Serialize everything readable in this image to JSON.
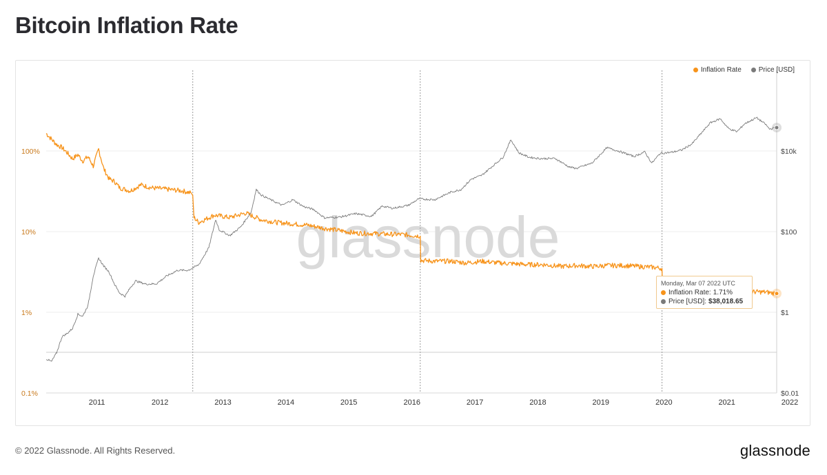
{
  "page": {
    "title": "Bitcoin Inflation Rate",
    "copyright": "© 2022 Glassnode. All Rights Reserved.",
    "brand": "glassnode",
    "watermark": "glassnode"
  },
  "legend": {
    "inflation_label": "Inflation Rate",
    "price_label": "Price [USD]"
  },
  "tooltip": {
    "date": "Monday, Mar 07 2022 UTC",
    "inflation_label": "Inflation Rate:",
    "inflation_value": "1.71%",
    "price_label": "Price [USD]:",
    "price_value": "$38,018.65"
  },
  "colors": {
    "inflation": "#f7931a",
    "price": "#7a7a7a",
    "left_axis_text": "#c8781a",
    "grid": "#eeeeee"
  },
  "chart_data": {
    "type": "line",
    "title": "Bitcoin Inflation Rate",
    "x_type": "date",
    "x_ticks": [
      "2011",
      "2012",
      "2013",
      "2014",
      "2015",
      "2016",
      "2017",
      "2018",
      "2019",
      "2020",
      "2021",
      "2022"
    ],
    "x_range": [
      "2010-08-01",
      "2022-03-07"
    ],
    "y_left": {
      "scale": "log",
      "range": [
        0.1,
        1000
      ],
      "ticks": [
        {
          "value": 0.1,
          "label": "0.1%"
        },
        {
          "value": 1,
          "label": "1%"
        },
        {
          "value": 10,
          "label": "10%"
        },
        {
          "value": 100,
          "label": "100%"
        }
      ]
    },
    "y_right": {
      "scale": "log",
      "range": [
        0.01,
        1000000
      ],
      "ticks": [
        {
          "value": 0.01,
          "label": "$0.01"
        },
        {
          "value": 1,
          "label": "$1"
        },
        {
          "value": 100,
          "label": "$100"
        },
        {
          "value": 10000,
          "label": "$10k"
        }
      ]
    },
    "halvings": [
      "2012-11-28",
      "2016-07-09",
      "2020-05-11"
    ],
    "series": [
      {
        "name": "Inflation Rate",
        "axis": "left",
        "unit": "%",
        "points": [
          [
            "2010-08-01",
            165
          ],
          [
            "2010-09-01",
            140
          ],
          [
            "2010-10-01",
            120
          ],
          [
            "2010-11-01",
            110
          ],
          [
            "2010-12-01",
            95
          ],
          [
            "2011-01-01",
            80
          ],
          [
            "2011-02-01",
            90
          ],
          [
            "2011-03-01",
            75
          ],
          [
            "2011-04-01",
            85
          ],
          [
            "2011-05-01",
            65
          ],
          [
            "2011-06-01",
            105
          ],
          [
            "2011-07-01",
            60
          ],
          [
            "2011-08-01",
            45
          ],
          [
            "2011-09-01",
            42
          ],
          [
            "2011-10-01",
            35
          ],
          [
            "2011-12-01",
            32
          ],
          [
            "2012-02-01",
            38
          ],
          [
            "2012-04-01",
            35
          ],
          [
            "2012-06-01",
            34
          ],
          [
            "2012-08-01",
            33
          ],
          [
            "2012-10-01",
            32
          ],
          [
            "2012-11-20",
            30
          ],
          [
            "2012-11-28",
            28
          ],
          [
            "2012-12-05",
            15
          ],
          [
            "2013-01-01",
            13
          ],
          [
            "2013-04-01",
            16
          ],
          [
            "2013-07-01",
            15
          ],
          [
            "2013-10-01",
            17
          ],
          [
            "2014-01-01",
            14
          ],
          [
            "2014-04-01",
            13
          ],
          [
            "2014-07-01",
            12.5
          ],
          [
            "2014-10-01",
            12
          ],
          [
            "2015-01-01",
            11
          ],
          [
            "2015-04-01",
            10.3
          ],
          [
            "2015-07-01",
            9.6
          ],
          [
            "2015-10-01",
            9.5
          ],
          [
            "2016-01-01",
            9.3
          ],
          [
            "2016-04-01",
            9.2
          ],
          [
            "2016-07-09",
            8.8
          ],
          [
            "2016-07-12",
            4.4
          ],
          [
            "2016-10-01",
            4.3
          ],
          [
            "2017-01-01",
            4.3
          ],
          [
            "2017-04-01",
            4.1
          ],
          [
            "2017-07-01",
            4.3
          ],
          [
            "2017-10-01",
            4.1
          ],
          [
            "2018-01-01",
            4.0
          ],
          [
            "2018-04-01",
            3.9
          ],
          [
            "2018-07-01",
            3.9
          ],
          [
            "2018-10-01",
            3.7
          ],
          [
            "2019-01-01",
            3.8
          ],
          [
            "2019-04-01",
            3.7
          ],
          [
            "2019-07-01",
            3.8
          ],
          [
            "2019-10-01",
            3.8
          ],
          [
            "2020-01-01",
            3.7
          ],
          [
            "2020-04-01",
            3.6
          ],
          [
            "2020-05-11",
            3.5
          ],
          [
            "2020-05-15",
            1.5
          ],
          [
            "2020-07-01",
            1.8
          ],
          [
            "2020-10-01",
            1.75
          ],
          [
            "2021-01-01",
            1.8
          ],
          [
            "2021-04-01",
            1.75
          ],
          [
            "2021-06-01",
            1.3
          ],
          [
            "2021-07-01",
            1.85
          ],
          [
            "2021-10-01",
            1.8
          ],
          [
            "2022-01-01",
            1.78
          ],
          [
            "2022-03-07",
            1.71
          ]
        ]
      },
      {
        "name": "Price [USD]",
        "axis": "right",
        "unit": "USD",
        "points": [
          [
            "2010-08-01",
            0.07
          ],
          [
            "2010-09-01",
            0.06
          ],
          [
            "2010-10-01",
            0.1
          ],
          [
            "2010-11-01",
            0.25
          ],
          [
            "2010-12-01",
            0.3
          ],
          [
            "2011-01-01",
            0.4
          ],
          [
            "2011-02-01",
            0.9
          ],
          [
            "2011-03-01",
            0.8
          ],
          [
            "2011-04-01",
            1.5
          ],
          [
            "2011-05-01",
            8
          ],
          [
            "2011-06-01",
            22
          ],
          [
            "2011-07-01",
            14
          ],
          [
            "2011-08-01",
            10
          ],
          [
            "2011-09-01",
            5
          ],
          [
            "2011-10-01",
            3
          ],
          [
            "2011-11-01",
            2.5
          ],
          [
            "2011-12-01",
            4
          ],
          [
            "2012-01-01",
            6
          ],
          [
            "2012-03-01",
            5
          ],
          [
            "2012-05-01",
            5.1
          ],
          [
            "2012-07-01",
            8
          ],
          [
            "2012-09-01",
            11
          ],
          [
            "2012-11-01",
            11
          ],
          [
            "2013-01-01",
            15
          ],
          [
            "2013-03-01",
            40
          ],
          [
            "2013-04-10",
            200
          ],
          [
            "2013-05-01",
            110
          ],
          [
            "2013-07-01",
            80
          ],
          [
            "2013-09-01",
            130
          ],
          [
            "2013-11-01",
            300
          ],
          [
            "2013-12-01",
            1100
          ],
          [
            "2014-01-01",
            800
          ],
          [
            "2014-03-01",
            600
          ],
          [
            "2014-05-01",
            450
          ],
          [
            "2014-07-01",
            620
          ],
          [
            "2014-09-01",
            420
          ],
          [
            "2014-11-01",
            350
          ],
          [
            "2015-01-01",
            220
          ],
          [
            "2015-04-01",
            230
          ],
          [
            "2015-07-01",
            280
          ],
          [
            "2015-10-01",
            240
          ],
          [
            "2015-12-01",
            430
          ],
          [
            "2016-02-01",
            380
          ],
          [
            "2016-05-01",
            450
          ],
          [
            "2016-07-01",
            650
          ],
          [
            "2016-10-01",
            620
          ],
          [
            "2017-01-01",
            950
          ],
          [
            "2017-03-01",
            1100
          ],
          [
            "2017-05-01",
            2000
          ],
          [
            "2017-07-01",
            2500
          ],
          [
            "2017-09-01",
            4200
          ],
          [
            "2017-11-01",
            7000
          ],
          [
            "2017-12-17",
            19000
          ],
          [
            "2018-02-01",
            9000
          ],
          [
            "2018-04-01",
            7000
          ],
          [
            "2018-06-01",
            6500
          ],
          [
            "2018-09-01",
            6500
          ],
          [
            "2018-11-20",
            4000
          ],
          [
            "2019-01-01",
            3700
          ],
          [
            "2019-04-01",
            5000
          ],
          [
            "2019-06-26",
            12000
          ],
          [
            "2019-09-01",
            10000
          ],
          [
            "2019-12-01",
            7300
          ],
          [
            "2020-02-01",
            9500
          ],
          [
            "2020-03-13",
            5000
          ],
          [
            "2020-05-01",
            8800
          ],
          [
            "2020-07-01",
            9200
          ],
          [
            "2020-09-01",
            10500
          ],
          [
            "2020-11-01",
            15000
          ],
          [
            "2021-01-01",
            30000
          ],
          [
            "2021-02-15",
            50000
          ],
          [
            "2021-04-14",
            63000
          ],
          [
            "2021-06-01",
            36000
          ],
          [
            "2021-07-20",
            30000
          ],
          [
            "2021-09-01",
            47000
          ],
          [
            "2021-11-10",
            67000
          ],
          [
            "2022-01-01",
            46000
          ],
          [
            "2022-01-24",
            35000
          ],
          [
            "2022-03-07",
            38018.65
          ]
        ]
      }
    ]
  }
}
